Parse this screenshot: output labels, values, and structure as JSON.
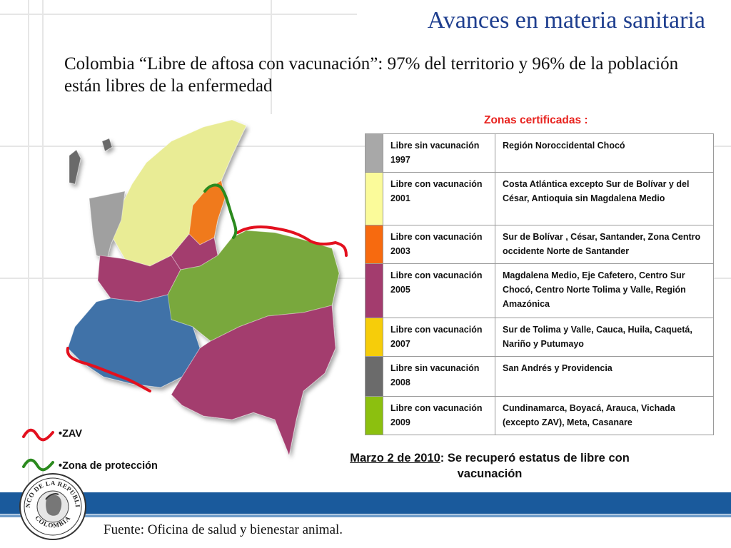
{
  "title": "Avances en materia sanitaria",
  "subtitle": "Colombia “Libre de aftosa con vacunación”: 97% del territorio y 96% de la población están libres de la enfermedad",
  "zones_title": "Zonas certificadas :",
  "zones": [
    {
      "color": "#a8a8a8",
      "status": "Libre sin vacunación 1997",
      "region": "Región Noroccidental Chocó"
    },
    {
      "color": "#fbfb9a",
      "status": "Libre con vacunación 2001",
      "region": "Costa Atlántica excepto Sur de Bolívar y del César, Antioquia sin Magdalena Medio"
    },
    {
      "color": "#f76a0f",
      "status": "Libre con vacunación 2003",
      "region": "Sur de Bolívar , César, Santander, Zona Centro occidente Norte de Santander"
    },
    {
      "color": "#a33c6e",
      "status": "Libre con vacunación 2005",
      "region": "Magdalena Medio, Eje Cafetero, Centro Sur Chocó, Centro Norte Tolima y Valle, Región Amazónica"
    },
    {
      "color": "#f6cd0a",
      "status": "Libre con vacunación 2007",
      "region": "Sur de Tolima y Valle, Cauca, Huila, Caquetá, Nariño y Putumayo"
    },
    {
      "color": "#6b6b6b",
      "status": "Libre sin vacunación 2008",
      "region": "San Andrés y Providencia"
    },
    {
      "color": "#8cc00f",
      "status": "Libre con vacunación 2009",
      "region": "Cundinamarca, Boyacá, Arauca, Vichada (excepto ZAV), Meta, Casanare"
    }
  ],
  "legend": {
    "zav_label": "•ZAV",
    "zav_color": "#e3101e",
    "proteccion_label": "•Zona de protección",
    "proteccion_color": "#2b8a1e"
  },
  "note": {
    "date": "Marzo 2 de 2010",
    "text": ": Se recuperó estatus de libre con vacunación"
  },
  "source": "Fuente: Oficina de salud y bienestar animal.",
  "seal": {
    "text_top": "BANCO DE LA REPUBLICA",
    "text_bottom": "COLOMBIA"
  },
  "map_colors": {
    "gray": "#a0a0a0",
    "yellow": "#e9ec95",
    "orange": "#f07a1c",
    "magenta": "#a33c6e",
    "green": "#79a83c",
    "blue": "#3f72a8",
    "zav_red": "#e3101e",
    "protection_green": "#2b8a1e"
  }
}
